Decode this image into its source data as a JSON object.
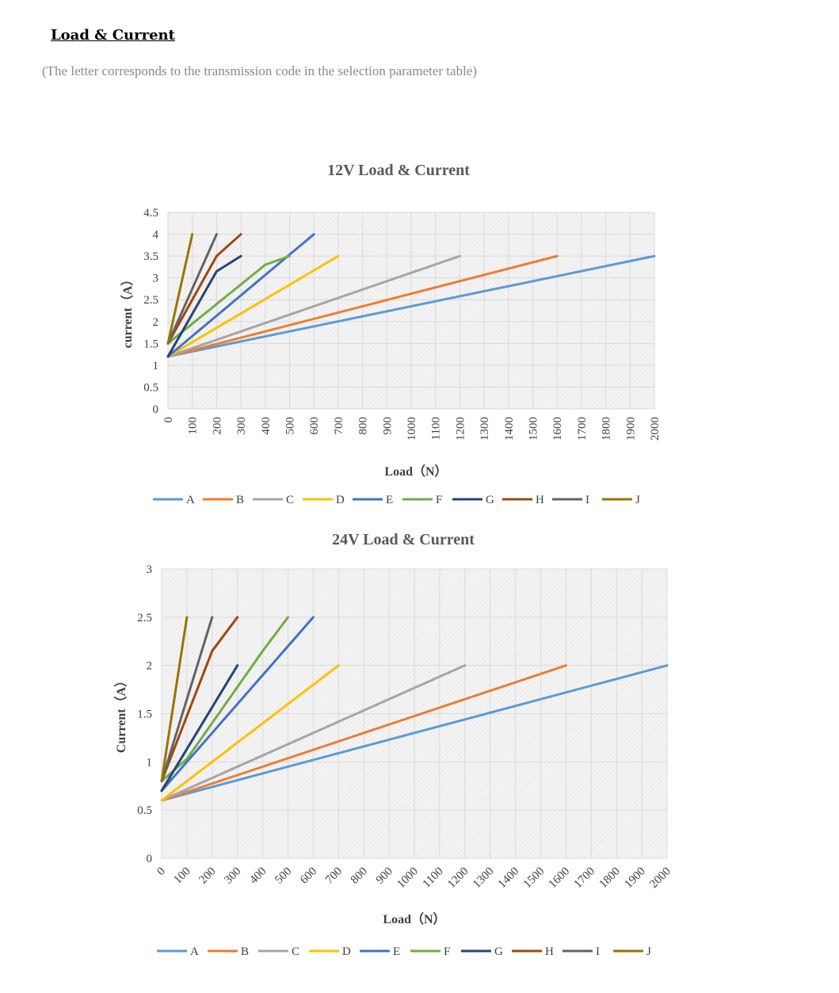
{
  "page": {
    "heading": "Load & Current",
    "note": "(The letter corresponds to the transmission code in the selection parameter table)"
  },
  "series_colors": {
    "A": "#5b9bd5",
    "B": "#ed7d31",
    "C": "#a5a5a5",
    "D": "#ffc000",
    "E": "#4472c4",
    "F": "#70ad47",
    "G": "#264478",
    "H": "#9e480e",
    "I": "#636363",
    "J": "#997300"
  },
  "chart_data": [
    {
      "type": "line",
      "title": "12V Load & Current",
      "xlabel": "Load（N）",
      "ylabel": "current（A）",
      "xlim": [
        0,
        2000
      ],
      "ylim": [
        0,
        4.5
      ],
      "x_ticks": [
        "0",
        "100",
        "200",
        "300",
        "400",
        "500",
        "600",
        "700",
        "800",
        "900",
        "1000",
        "1100",
        "1200",
        "1300",
        "1400",
        "1500",
        "1600",
        "1700",
        "1800",
        "1900",
        "2000"
      ],
      "y_ticks": [
        "0",
        "0.5",
        "1",
        "1.5",
        "2",
        "2.5",
        "3",
        "3.5",
        "4",
        "4.5"
      ],
      "grid": true,
      "legend": "bottom",
      "series": [
        {
          "name": "A",
          "points": [
            [
              0,
              1.2
            ],
            [
              2000,
              3.5
            ]
          ]
        },
        {
          "name": "B",
          "points": [
            [
              0,
              1.2
            ],
            [
              1600,
              3.5
            ]
          ]
        },
        {
          "name": "C",
          "points": [
            [
              0,
              1.2
            ],
            [
              1200,
              3.5
            ]
          ]
        },
        {
          "name": "D",
          "points": [
            [
              0,
              1.2
            ],
            [
              700,
              3.5
            ]
          ]
        },
        {
          "name": "E",
          "points": [
            [
              0,
              1.2
            ],
            [
              600,
              4.0
            ]
          ]
        },
        {
          "name": "F",
          "points": [
            [
              0,
              1.5
            ],
            [
              200,
              2.4
            ],
            [
              400,
              3.3
            ],
            [
              500,
              3.5
            ]
          ]
        },
        {
          "name": "G",
          "points": [
            [
              0,
              1.2
            ],
            [
              200,
              3.15
            ],
            [
              300,
              3.5
            ]
          ]
        },
        {
          "name": "H",
          "points": [
            [
              0,
              1.5
            ],
            [
              200,
              3.5
            ],
            [
              300,
              4.0
            ]
          ]
        },
        {
          "name": "I",
          "points": [
            [
              0,
              1.5
            ],
            [
              200,
              4.0
            ]
          ]
        },
        {
          "name": "J",
          "points": [
            [
              0,
              1.5
            ],
            [
              100,
              4.0
            ]
          ]
        }
      ]
    },
    {
      "type": "line",
      "title": "24V Load & Current",
      "xlabel": "Load（N）",
      "ylabel": "Current（A）",
      "xlim": [
        0,
        2000
      ],
      "ylim": [
        0,
        3
      ],
      "x_ticks": [
        "0",
        "100",
        "200",
        "300",
        "400",
        "500",
        "600",
        "700",
        "800",
        "900",
        "1000",
        "1100",
        "1200",
        "1300",
        "1400",
        "1500",
        "1600",
        "1700",
        "1800",
        "1900",
        "2000"
      ],
      "y_ticks": [
        "0",
        "0.5",
        "1",
        "1.5",
        "2",
        "2.5",
        "3"
      ],
      "grid": true,
      "legend": "bottom",
      "series": [
        {
          "name": "A",
          "points": [
            [
              0,
              0.6
            ],
            [
              2000,
              2.0
            ]
          ]
        },
        {
          "name": "B",
          "points": [
            [
              0,
              0.6
            ],
            [
              1600,
              2.0
            ]
          ]
        },
        {
          "name": "C",
          "points": [
            [
              0,
              0.6
            ],
            [
              1200,
              2.0
            ]
          ]
        },
        {
          "name": "D",
          "points": [
            [
              0,
              0.6
            ],
            [
              700,
              2.0
            ]
          ]
        },
        {
          "name": "E",
          "points": [
            [
              0,
              0.7
            ],
            [
              600,
              2.5
            ]
          ]
        },
        {
          "name": "F",
          "points": [
            [
              0,
              0.8
            ],
            [
              100,
              1.03
            ],
            [
              400,
              2.15
            ],
            [
              500,
              2.5
            ]
          ]
        },
        {
          "name": "G",
          "points": [
            [
              0,
              0.7
            ],
            [
              300,
              2.0
            ]
          ]
        },
        {
          "name": "H",
          "points": [
            [
              0,
              0.8
            ],
            [
              200,
              2.15
            ],
            [
              300,
              2.5
            ]
          ]
        },
        {
          "name": "I",
          "points": [
            [
              0,
              0.8
            ],
            [
              200,
              2.5
            ]
          ]
        },
        {
          "name": "J",
          "points": [
            [
              0,
              0.8
            ],
            [
              100,
              2.5
            ]
          ]
        }
      ]
    }
  ]
}
